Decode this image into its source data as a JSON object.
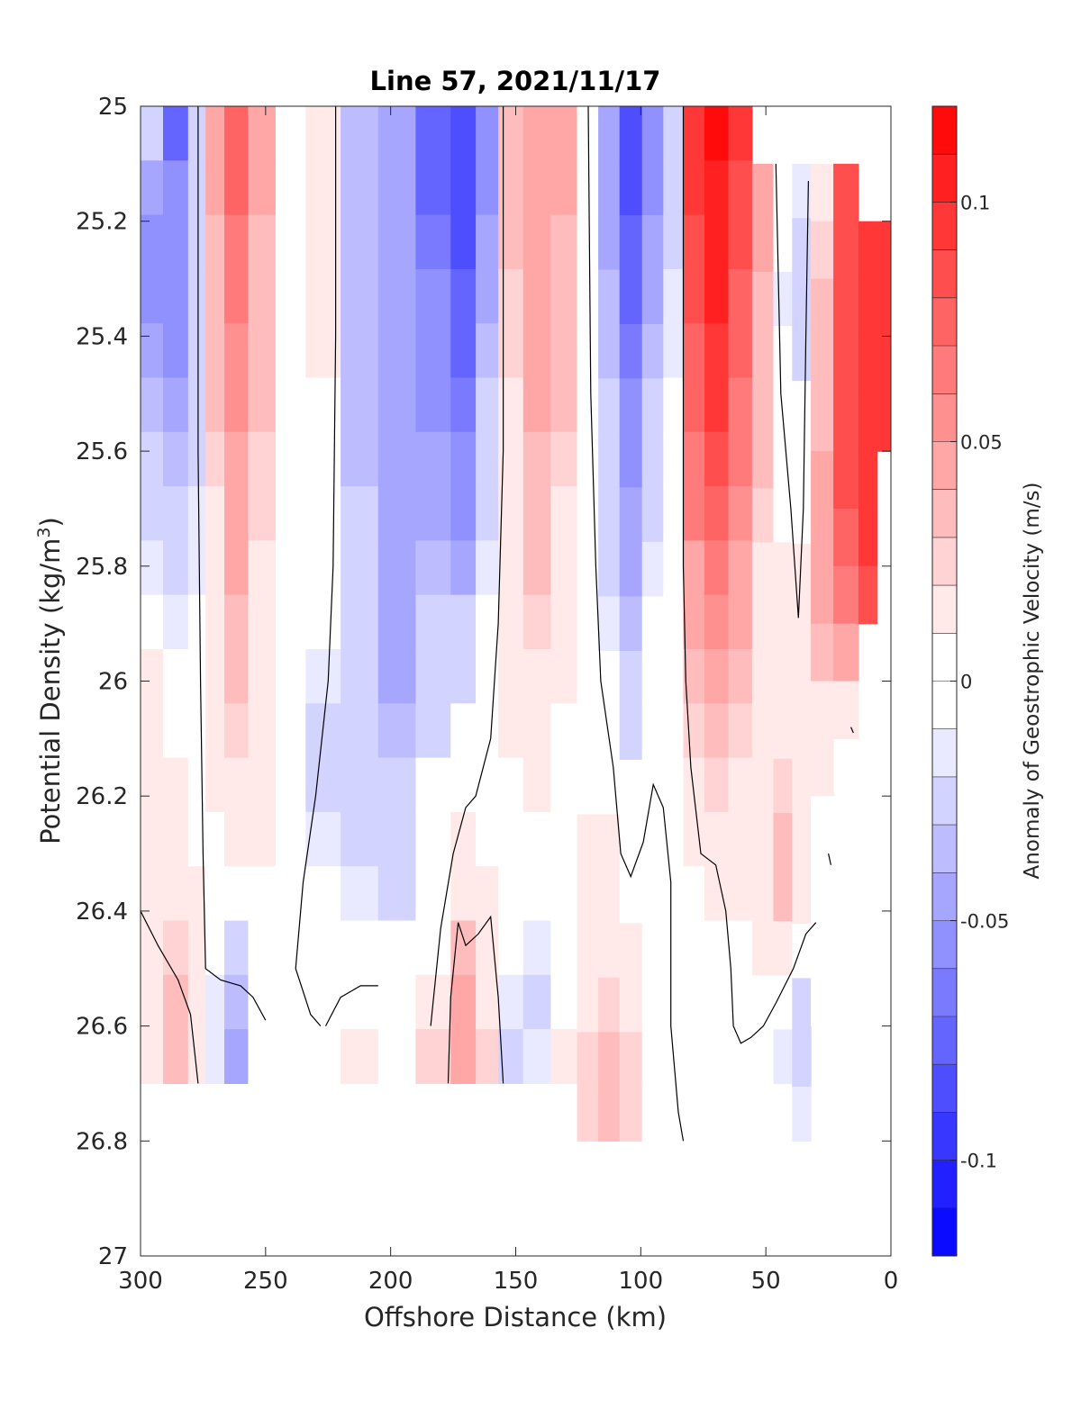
{
  "chart_data": {
    "type": "heatmap",
    "title": "Line 57, 2021/11/17",
    "xlabel": "Offshore Distance (km)",
    "ylabel_main": "Potential Density (kg/m",
    "ylabel_sup": "3",
    "ylabel_close": ")",
    "xlim": [
      300,
      0
    ],
    "ylim": [
      25,
      27
    ],
    "x_reversed": true,
    "y_reversed": true,
    "xticks": [
      300,
      250,
      200,
      150,
      100,
      50,
      0
    ],
    "xtick_labels": [
      "300",
      "250",
      "200",
      "150",
      "100",
      "50",
      "0"
    ],
    "yticks": [
      25,
      25.2,
      25.4,
      25.6,
      25.8,
      26,
      26.2,
      26.4,
      26.6,
      26.8,
      27
    ],
    "ytick_labels": [
      "25",
      "25.2",
      "25.4",
      "25.6",
      "25.8",
      "26",
      "26.2",
      "26.4",
      "26.6",
      "26.8",
      "27"
    ],
    "colorbar": {
      "label": "Anomaly of Geostrophic Velocity (m/s)",
      "range": [
        -0.12,
        0.12
      ],
      "levels": 24,
      "ticks": [
        0.1,
        0.05,
        0,
        -0.05,
        -0.1
      ],
      "tick_labels": [
        "0.1",
        "0.05",
        "0",
        "-0.05",
        "-0.1"
      ],
      "colormap": "blue-white-red",
      "neg_color": "#0000ff",
      "zero_color": "#ffffff",
      "pos_color": "#ff0000"
    },
    "columns": [
      {
        "x": 297,
        "top": 25.0,
        "bottom": 26.7,
        "values": [
          -0.03,
          -0.04,
          -0.05,
          -0.05,
          -0.04,
          -0.035,
          -0.03,
          -0.025,
          -0.015,
          0.005,
          0.015,
          0.015,
          0.02,
          0.02,
          0.02,
          0.02,
          0.02,
          0.02
        ]
      },
      {
        "x": 285,
        "top": 25.0,
        "bottom": 26.7,
        "values": [
          -0.07,
          -0.06,
          -0.06,
          -0.055,
          -0.05,
          -0.045,
          -0.035,
          -0.03,
          -0.025,
          -0.015,
          -0.01,
          0.005,
          0.01,
          0.015,
          0.02,
          0.025,
          0.03,
          0.03
        ]
      },
      {
        "x": 277,
        "top": 25.0,
        "bottom": 26.7,
        "values": [
          -0.03,
          -0.03,
          -0.025,
          -0.025,
          -0.02,
          -0.02,
          -0.02,
          -0.015,
          -0.015,
          -0.01,
          -0.01,
          -0.005,
          0.0,
          0.005,
          0.01,
          0.01,
          0.01,
          0.01
        ]
      },
      {
        "x": 271,
        "top": 25.0,
        "bottom": 26.7,
        "values": [
          0.04,
          0.04,
          0.035,
          0.035,
          0.03,
          0.03,
          0.025,
          0.02,
          0.02,
          0.015,
          0.015,
          0.01,
          0.01,
          0.005,
          0.0,
          -0.01,
          -0.015,
          -0.015
        ]
      },
      {
        "x": 262,
        "top": 25.0,
        "bottom": 26.7,
        "values": [
          0.07,
          0.07,
          0.065,
          0.06,
          0.055,
          0.055,
          0.05,
          0.045,
          0.04,
          0.035,
          0.03,
          0.025,
          0.02,
          0.015,
          0.005,
          -0.025,
          -0.035,
          -0.04
        ]
      },
      {
        "x": 252,
        "top": 25.0,
        "bottom": 26.7,
        "values": [
          0.04,
          0.04,
          0.035,
          0.035,
          0.03,
          0.03,
          0.025,
          0.025,
          0.02,
          0.02,
          0.015,
          0.015,
          0.015,
          0.01,
          0.005,
          -0.01,
          -0.01,
          -0.01
        ]
      },
      {
        "x": 240,
        "top": 25.0,
        "bottom": 26.7,
        "values": [
          0.0,
          0.0,
          0.0,
          0.0,
          0.0,
          0.0,
          0.0,
          0.0,
          0.0,
          0.0,
          0.0,
          0.0,
          0.0,
          0.0,
          -0.005,
          -0.01,
          0.0,
          0.0
        ]
      },
      {
        "x": 228,
        "top": 25.0,
        "bottom": 26.7,
        "values": [
          0.01,
          0.015,
          0.015,
          0.01,
          0.01,
          0.005,
          0.0,
          0.0,
          -0.005,
          -0.01,
          -0.015,
          -0.02,
          -0.02,
          -0.015,
          -0.01,
          -0.005,
          0.0,
          0.0
        ]
      },
      {
        "x": 212,
        "top": 25.0,
        "bottom": 26.7,
        "values": [
          -0.035,
          -0.035,
          -0.035,
          -0.035,
          -0.035,
          -0.035,
          -0.035,
          -0.03,
          -0.03,
          -0.03,
          -0.025,
          -0.025,
          -0.02,
          -0.02,
          -0.015,
          -0.01,
          0.005,
          0.01
        ]
      },
      {
        "x": 198,
        "top": 25.0,
        "bottom": 26.7,
        "values": [
          -0.04,
          -0.04,
          -0.04,
          -0.04,
          -0.04,
          -0.04,
          -0.04,
          -0.04,
          -0.04,
          -0.04,
          -0.04,
          -0.035,
          -0.03,
          -0.025,
          -0.02,
          -0.01,
          0.0,
          0.0
        ]
      },
      {
        "x": 182,
        "top": 25.0,
        "bottom": 26.7,
        "values": [
          -0.07,
          -0.07,
          -0.065,
          -0.06,
          -0.055,
          -0.05,
          -0.045,
          -0.04,
          -0.035,
          -0.03,
          -0.025,
          -0.02,
          -0.01,
          0.0,
          0.0,
          0.0,
          0.015,
          0.025
        ]
      },
      {
        "x": 170,
        "top": 25.0,
        "bottom": 26.7,
        "values": [
          -0.09,
          -0.085,
          -0.08,
          -0.075,
          -0.07,
          -0.065,
          -0.06,
          -0.05,
          -0.04,
          -0.03,
          -0.02,
          -0.01,
          0.0,
          0.015,
          0.02,
          0.03,
          0.04,
          0.045
        ]
      },
      {
        "x": 162,
        "top": 25.0,
        "bottom": 26.7,
        "values": [
          -0.05,
          -0.05,
          -0.045,
          -0.04,
          -0.035,
          -0.03,
          -0.025,
          -0.02,
          -0.015,
          -0.01,
          -0.005,
          0.0,
          0.0,
          0.005,
          0.01,
          0.015,
          0.02,
          0.025
        ]
      },
      {
        "x": 152,
        "top": 25.0,
        "bottom": 26.7,
        "values": [
          0.03,
          0.03,
          0.03,
          0.025,
          0.025,
          0.02,
          0.02,
          0.02,
          0.015,
          0.015,
          0.01,
          0.01,
          0.005,
          0.0,
          -0.005,
          -0.01,
          -0.015,
          -0.02
        ]
      },
      {
        "x": 142,
        "top": 25.0,
        "bottom": 26.7,
        "values": [
          0.05,
          0.05,
          0.045,
          0.045,
          0.04,
          0.04,
          0.035,
          0.03,
          0.03,
          0.025,
          0.02,
          0.015,
          0.01,
          0.0,
          -0.005,
          -0.015,
          -0.02,
          -0.015
        ]
      },
      {
        "x": 130,
        "top": 25.0,
        "bottom": 26.7,
        "values": [
          0.04,
          0.04,
          0.035,
          0.035,
          0.03,
          0.03,
          0.025,
          0.02,
          0.02,
          0.015,
          0.01,
          0.005,
          0.0,
          0.0,
          0.005,
          0.005,
          0.005,
          0.01
        ]
      },
      {
        "x": 121,
        "top": 25.0,
        "bottom": 26.8,
        "values": [
          0.005,
          0.005,
          0.005,
          0.0,
          0.0,
          0.0,
          0.0,
          0.0,
          0.0,
          0.0,
          0.0,
          0.0,
          0.005,
          0.01,
          0.015,
          0.015,
          0.02,
          0.025,
          0.025
        ]
      },
      {
        "x": 113,
        "top": 25.0,
        "bottom": 26.8,
        "values": [
          -0.04,
          -0.04,
          -0.04,
          -0.035,
          -0.035,
          -0.03,
          -0.03,
          -0.025,
          -0.02,
          -0.015,
          -0.01,
          -0.005,
          0.0,
          0.01,
          0.015,
          0.02,
          0.025,
          0.03,
          0.03
        ]
      },
      {
        "x": 104,
        "top": 25.0,
        "bottom": 26.8,
        "values": [
          -0.085,
          -0.08,
          -0.075,
          -0.07,
          -0.065,
          -0.06,
          -0.055,
          -0.045,
          -0.04,
          -0.035,
          -0.025,
          -0.02,
          -0.01,
          0.0,
          0.005,
          0.01,
          0.02,
          0.025,
          0.025
        ]
      },
      {
        "x": 95,
        "top": 25.0,
        "bottom": 26.8,
        "values": [
          -0.05,
          -0.05,
          -0.045,
          -0.04,
          -0.035,
          -0.03,
          -0.025,
          -0.02,
          -0.015,
          -0.01,
          -0.005,
          0.0,
          0.0,
          0.0,
          0.005,
          0.005,
          0.0,
          0.0,
          0.0
        ]
      },
      {
        "x": 87,
        "top": 25.0,
        "bottom": 26.7,
        "values": [
          -0.02,
          -0.02,
          -0.02,
          -0.015,
          -0.015,
          -0.01,
          -0.01,
          -0.01,
          -0.005,
          -0.005,
          0.0,
          0.0,
          0.0,
          0.0,
          0.0,
          0.0,
          0.0,
          -0.01
        ]
      },
      {
        "x": 79,
        "top": 25.0,
        "bottom": 26.7,
        "values": [
          0.09,
          0.09,
          0.085,
          0.08,
          0.075,
          0.07,
          0.065,
          0.06,
          0.05,
          0.045,
          0.035,
          0.025,
          0.015,
          0.01,
          0.005,
          0.0,
          0.0,
          -0.01
        ]
      },
      {
        "x": 70,
        "top": 25.0,
        "bottom": 26.7,
        "values": [
          0.115,
          0.11,
          0.105,
          0.1,
          0.095,
          0.09,
          0.08,
          0.075,
          0.065,
          0.055,
          0.045,
          0.035,
          0.025,
          0.015,
          0.01,
          0.005,
          0.0,
          -0.005
        ]
      },
      {
        "x": 60,
        "top": 25.0,
        "bottom": 26.7,
        "values": [
          0.09,
          0.085,
          0.08,
          0.075,
          0.07,
          0.065,
          0.06,
          0.055,
          0.045,
          0.04,
          0.03,
          0.025,
          0.02,
          0.015,
          0.01,
          0.005,
          0.0,
          0.0
        ]
      },
      {
        "x": 51,
        "top": 25.1,
        "bottom": 26.7,
        "values": [
          0.04,
          0.04,
          0.035,
          0.035,
          0.03,
          0.03,
          0.025,
          0.02,
          0.02,
          0.015,
          0.015,
          0.015,
          0.02,
          0.02,
          0.01,
          0.0,
          -0.005
        ]
      },
      {
        "x": 43,
        "top": 25.1,
        "bottom": 26.7,
        "values": [
          -0.005,
          -0.01,
          -0.015,
          -0.01,
          -0.005,
          0.0,
          0.005,
          0.01,
          0.015,
          0.02,
          0.02,
          0.025,
          0.03,
          0.03,
          0.02,
          0.005,
          -0.015
        ]
      },
      {
        "x": 36,
        "top": 25.1,
        "bottom": 26.8,
        "values": [
          -0.015,
          -0.02,
          -0.025,
          -0.02,
          -0.01,
          -0.005,
          0.0,
          0.01,
          0.015,
          0.015,
          0.015,
          0.015,
          0.02,
          0.015,
          0.005,
          -0.02,
          -0.03,
          -0.015
        ]
      },
      {
        "x": 28,
        "top": 25.1,
        "bottom": 26.6,
        "values": [
          0.02,
          0.025,
          0.03,
          0.03,
          0.035,
          0.04,
          0.045,
          0.045,
          0.035,
          0.02,
          0.01,
          0.005,
          0.0,
          0.0,
          0.0
        ]
      },
      {
        "x": 18,
        "top": 25.1,
        "bottom": 26.1,
        "values": [
          0.08,
          0.08,
          0.085,
          0.085,
          0.085,
          0.08,
          0.075,
          0.065,
          0.04,
          0.02
        ]
      },
      {
        "x": 8,
        "top": 25.2,
        "bottom": 25.9,
        "values": [
          0.09,
          0.09,
          0.09,
          0.09,
          0.09,
          0.09,
          0.085
        ]
      },
      {
        "x": 3,
        "top": 25.2,
        "bottom": 25.6,
        "values": [
          0.09,
          0.09,
          0.09,
          0.09
        ]
      }
    ],
    "zero_contours": [
      {
        "points": [
          [
            277,
            25.0
          ],
          [
            277,
            25.6
          ],
          [
            276,
            26.0
          ],
          [
            275,
            26.3
          ],
          [
            274,
            26.5
          ],
          [
            268,
            26.52
          ],
          [
            260,
            26.53
          ],
          [
            255,
            26.55
          ],
          [
            250,
            26.59
          ]
        ]
      },
      {
        "points": [
          [
            300,
            26.4
          ],
          [
            293,
            26.46
          ],
          [
            285,
            26.52
          ],
          [
            280,
            26.58
          ],
          [
            277,
            26.7
          ]
        ]
      },
      {
        "points": [
          [
            222,
            25.0
          ],
          [
            222,
            25.4
          ],
          [
            223,
            25.8
          ],
          [
            225,
            26.0
          ],
          [
            230,
            26.2
          ],
          [
            235,
            26.35
          ],
          [
            238,
            26.5
          ],
          [
            232,
            26.58
          ],
          [
            228,
            26.6
          ]
        ]
      },
      {
        "points": [
          [
            226,
            26.6
          ],
          [
            220,
            26.55
          ],
          [
            212,
            26.53
          ],
          [
            205,
            26.53
          ]
        ]
      },
      {
        "points": [
          [
            155,
            25.0
          ],
          [
            155,
            25.6
          ],
          [
            157,
            25.9
          ],
          [
            160,
            26.1
          ],
          [
            166,
            26.2
          ],
          [
            170,
            26.22
          ],
          [
            175,
            26.3
          ],
          [
            180,
            26.43
          ],
          [
            184,
            26.6
          ]
        ]
      },
      {
        "points": [
          [
            155,
            26.7
          ],
          [
            157,
            26.55
          ],
          [
            160,
            26.41
          ],
          [
            165,
            26.44
          ],
          [
            170,
            26.46
          ],
          [
            173,
            26.42
          ],
          [
            176,
            26.55
          ],
          [
            177,
            26.7
          ]
        ]
      },
      {
        "points": [
          [
            121,
            25.0
          ],
          [
            120,
            25.5
          ],
          [
            118,
            25.8
          ],
          [
            116,
            26.0
          ],
          [
            111,
            26.15
          ],
          [
            108,
            26.3
          ],
          [
            104,
            26.34
          ],
          [
            99,
            26.28
          ],
          [
            95,
            26.18
          ],
          [
            91,
            26.22
          ],
          [
            88,
            26.35
          ],
          [
            88,
            26.5
          ],
          [
            88,
            26.6
          ],
          [
            85,
            26.75
          ],
          [
            83,
            26.8
          ]
        ]
      },
      {
        "points": [
          [
            83,
            25.0
          ],
          [
            83,
            25.5
          ],
          [
            83,
            25.8
          ],
          [
            82,
            26.0
          ],
          [
            80,
            26.15
          ],
          [
            76,
            26.3
          ],
          [
            70,
            26.32
          ],
          [
            66,
            26.4
          ],
          [
            64,
            26.5
          ],
          [
            63,
            26.6
          ],
          [
            60,
            26.63
          ],
          [
            56,
            26.62
          ],
          [
            51,
            26.6
          ],
          [
            46,
            26.56
          ],
          [
            39,
            26.5
          ],
          [
            34,
            26.44
          ],
          [
            30,
            26.42
          ]
        ]
      },
      {
        "points": [
          [
            46,
            25.1
          ],
          [
            44,
            25.5
          ],
          [
            40,
            25.7
          ],
          [
            37,
            25.89
          ],
          [
            35,
            25.7
          ],
          [
            34,
            25.4
          ],
          [
            33,
            25.13
          ]
        ]
      },
      {
        "points": [
          [
            25,
            26.3
          ],
          [
            24,
            26.32
          ]
        ]
      },
      {
        "points": [
          [
            16,
            26.08
          ],
          [
            15,
            26.09
          ]
        ]
      }
    ]
  }
}
